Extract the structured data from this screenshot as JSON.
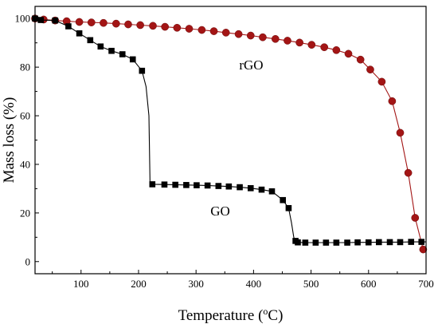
{
  "chart_data": {
    "type": "line",
    "xlabel": "Temperature",
    "xlabel_unit": "(oC)",
    "ylabel": "Mass loss (%)",
    "xlim": [
      20,
      700
    ],
    "ylim": [
      -5,
      105
    ],
    "x_ticks": [
      100,
      200,
      300,
      400,
      500,
      600,
      700
    ],
    "y_ticks": [
      0,
      20,
      40,
      60,
      80,
      100
    ],
    "grid": false,
    "annotations": [
      {
        "text": "rGO",
        "x": 375,
        "y": 79
      },
      {
        "text": "GO",
        "x": 325,
        "y": 19
      }
    ],
    "series": [
      {
        "name": "rGO",
        "color": "#a31515",
        "marker": "circle",
        "x": [
          20,
          35,
          55,
          75,
          97,
          118,
          139,
          161,
          182,
          203,
          225,
          246,
          267,
          288,
          310,
          331,
          352,
          374,
          395,
          416,
          438,
          459,
          480,
          501,
          523,
          544,
          565,
          586,
          603,
          623,
          641,
          655,
          669,
          681,
          695
        ],
        "y": [
          100,
          99.6,
          99.2,
          98.9,
          98.6,
          98.4,
          98.2,
          97.9,
          97.6,
          97.3,
          97.0,
          96.6,
          96.2,
          95.8,
          95.3,
          94.8,
          94.2,
          93.6,
          93.0,
          92.3,
          91.6,
          90.9,
          90.1,
          89.2,
          88.2,
          87.0,
          85.5,
          83.1,
          79,
          74,
          66,
          53,
          36.5,
          18,
          5
        ]
      },
      {
        "name": "GO",
        "color": "#000000",
        "marker": "square",
        "x": [
          20,
          30,
          55,
          78,
          97,
          116,
          134,
          153,
          172,
          190,
          206,
          213,
          218,
          220,
          224,
          245,
          264,
          283,
          301,
          320,
          339,
          357,
          376,
          395,
          414,
          432,
          451,
          461,
          466,
          470,
          473,
          477,
          490,
          508,
          526,
          544,
          563,
          581,
          600,
          618,
          637,
          655,
          674,
          692,
          700
        ],
        "y": [
          100,
          99.4,
          99.2,
          96.8,
          93.9,
          91.1,
          88.5,
          86.7,
          85.3,
          83.2,
          78.5,
          72,
          60,
          32,
          31.8,
          31.7,
          31.6,
          31.5,
          31.4,
          31.3,
          31.1,
          30.9,
          30.6,
          30.2,
          29.6,
          28.9,
          25.3,
          22,
          16,
          10,
          8.5,
          7.9,
          7.8,
          7.8,
          7.8,
          7.8,
          7.8,
          7.9,
          7.9,
          8.0,
          8.0,
          8.0,
          8.1,
          8.1,
          8.1
        ],
        "marker_mask": [
          true,
          true,
          true,
          true,
          true,
          true,
          true,
          true,
          true,
          true,
          true,
          false,
          false,
          false,
          true,
          true,
          true,
          true,
          true,
          true,
          true,
          true,
          true,
          true,
          true,
          true,
          true,
          true,
          false,
          false,
          true,
          true,
          true,
          true,
          true,
          true,
          true,
          true,
          true,
          true,
          true,
          true,
          true,
          true,
          false
        ]
      }
    ]
  }
}
